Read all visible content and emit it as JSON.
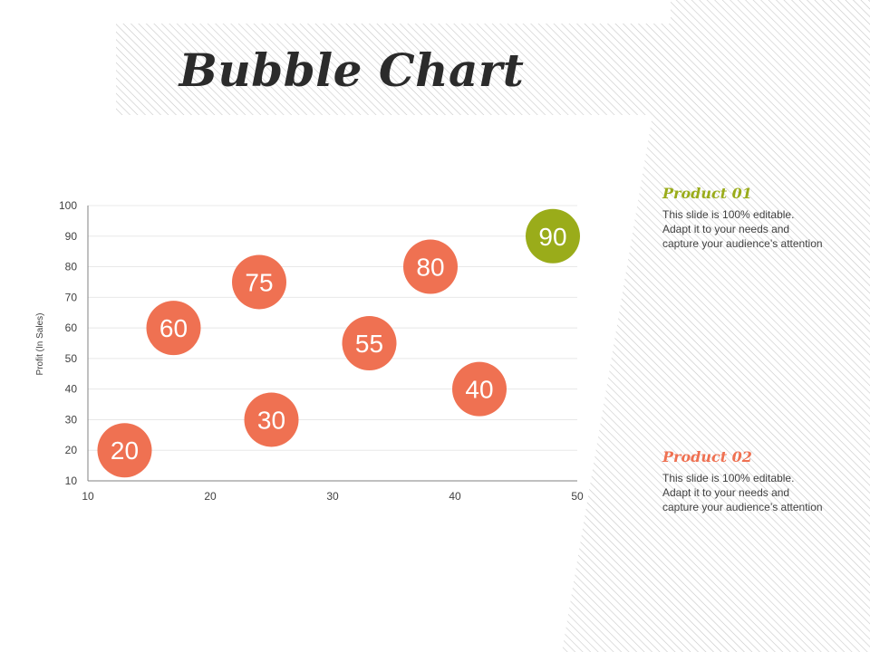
{
  "title": "Bubble Chart",
  "colors": {
    "orange": "#ef7152",
    "olive": "#9aac1a",
    "heading_olive": "#9aac1a",
    "heading_orange": "#ef7152",
    "gridline": "#e8e8e8",
    "axis": "#808080"
  },
  "chart_data": {
    "type": "scatter",
    "title": "",
    "xlabel": "",
    "ylabel": "Profit  (In Sales)",
    "xlim": [
      10,
      50
    ],
    "ylim": [
      10,
      100
    ],
    "x_ticks": [
      10,
      20,
      30,
      40,
      50
    ],
    "y_ticks": [
      10,
      20,
      30,
      40,
      50,
      60,
      70,
      80,
      90,
      100
    ],
    "grid": true,
    "points": [
      {
        "x": 13,
        "y": 20,
        "label": "20",
        "color": "orange"
      },
      {
        "x": 17,
        "y": 60,
        "label": "60",
        "color": "orange"
      },
      {
        "x": 24,
        "y": 75,
        "label": "75",
        "color": "orange"
      },
      {
        "x": 25,
        "y": 30,
        "label": "30",
        "color": "orange"
      },
      {
        "x": 33,
        "y": 55,
        "label": "55",
        "color": "orange"
      },
      {
        "x": 38,
        "y": 80,
        "label": "80",
        "color": "orange"
      },
      {
        "x": 42,
        "y": 40,
        "label": "40",
        "color": "orange"
      },
      {
        "x": 48,
        "y": 90,
        "label": "90",
        "color": "olive"
      }
    ]
  },
  "products": [
    {
      "heading": "Product 01",
      "lines": [
        "This slide is 100% editable.",
        "Adapt it to your needs and",
        "capture your audience’s attention"
      ]
    },
    {
      "heading": "Product 02",
      "lines": [
        "This slide is 100% editable.",
        "Adapt it to your needs and",
        "capture your audience’s attention"
      ]
    }
  ]
}
